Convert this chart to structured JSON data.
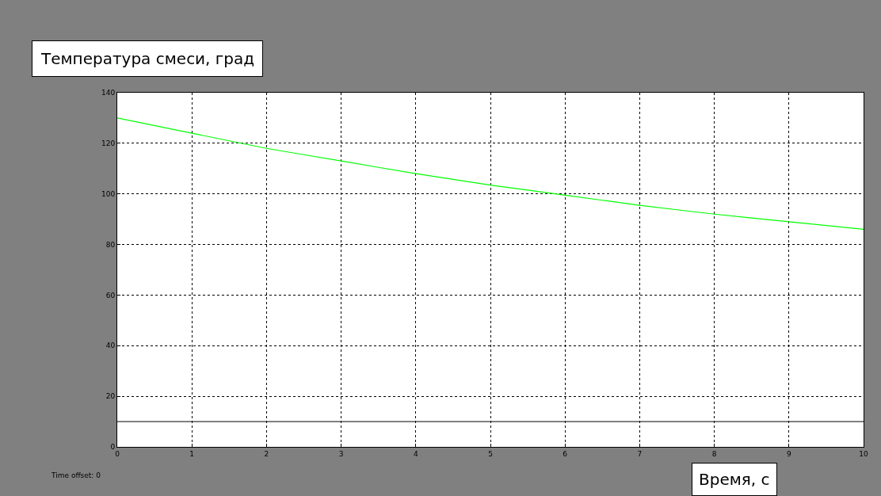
{
  "chart_data": {
    "type": "line",
    "title": "Температура смеси, град",
    "xlabel": "Время, с",
    "annotations": [
      "Time offset: 0"
    ],
    "x": [
      0,
      1,
      2,
      3,
      4,
      5,
      6,
      7,
      8,
      9,
      10
    ],
    "series": [
      {
        "color": "#00ff00",
        "values": [
          130,
          124,
          118,
          113,
          108,
          103.5,
          99.5,
          95.5,
          92,
          89,
          86
        ]
      }
    ],
    "ref_lines": [
      {
        "axis": "y",
        "value": 10,
        "color": "#000000",
        "line_style": "solid"
      }
    ],
    "xlim": [
      0,
      10
    ],
    "xticks": [
      0,
      1,
      2,
      3,
      4,
      5,
      6,
      7,
      8,
      9,
      10
    ],
    "ylim": [
      0,
      140
    ],
    "yticks": [
      0,
      20,
      40,
      60,
      80,
      100,
      120,
      140
    ],
    "grid": true,
    "marker": "none",
    "line_style": "solid"
  }
}
